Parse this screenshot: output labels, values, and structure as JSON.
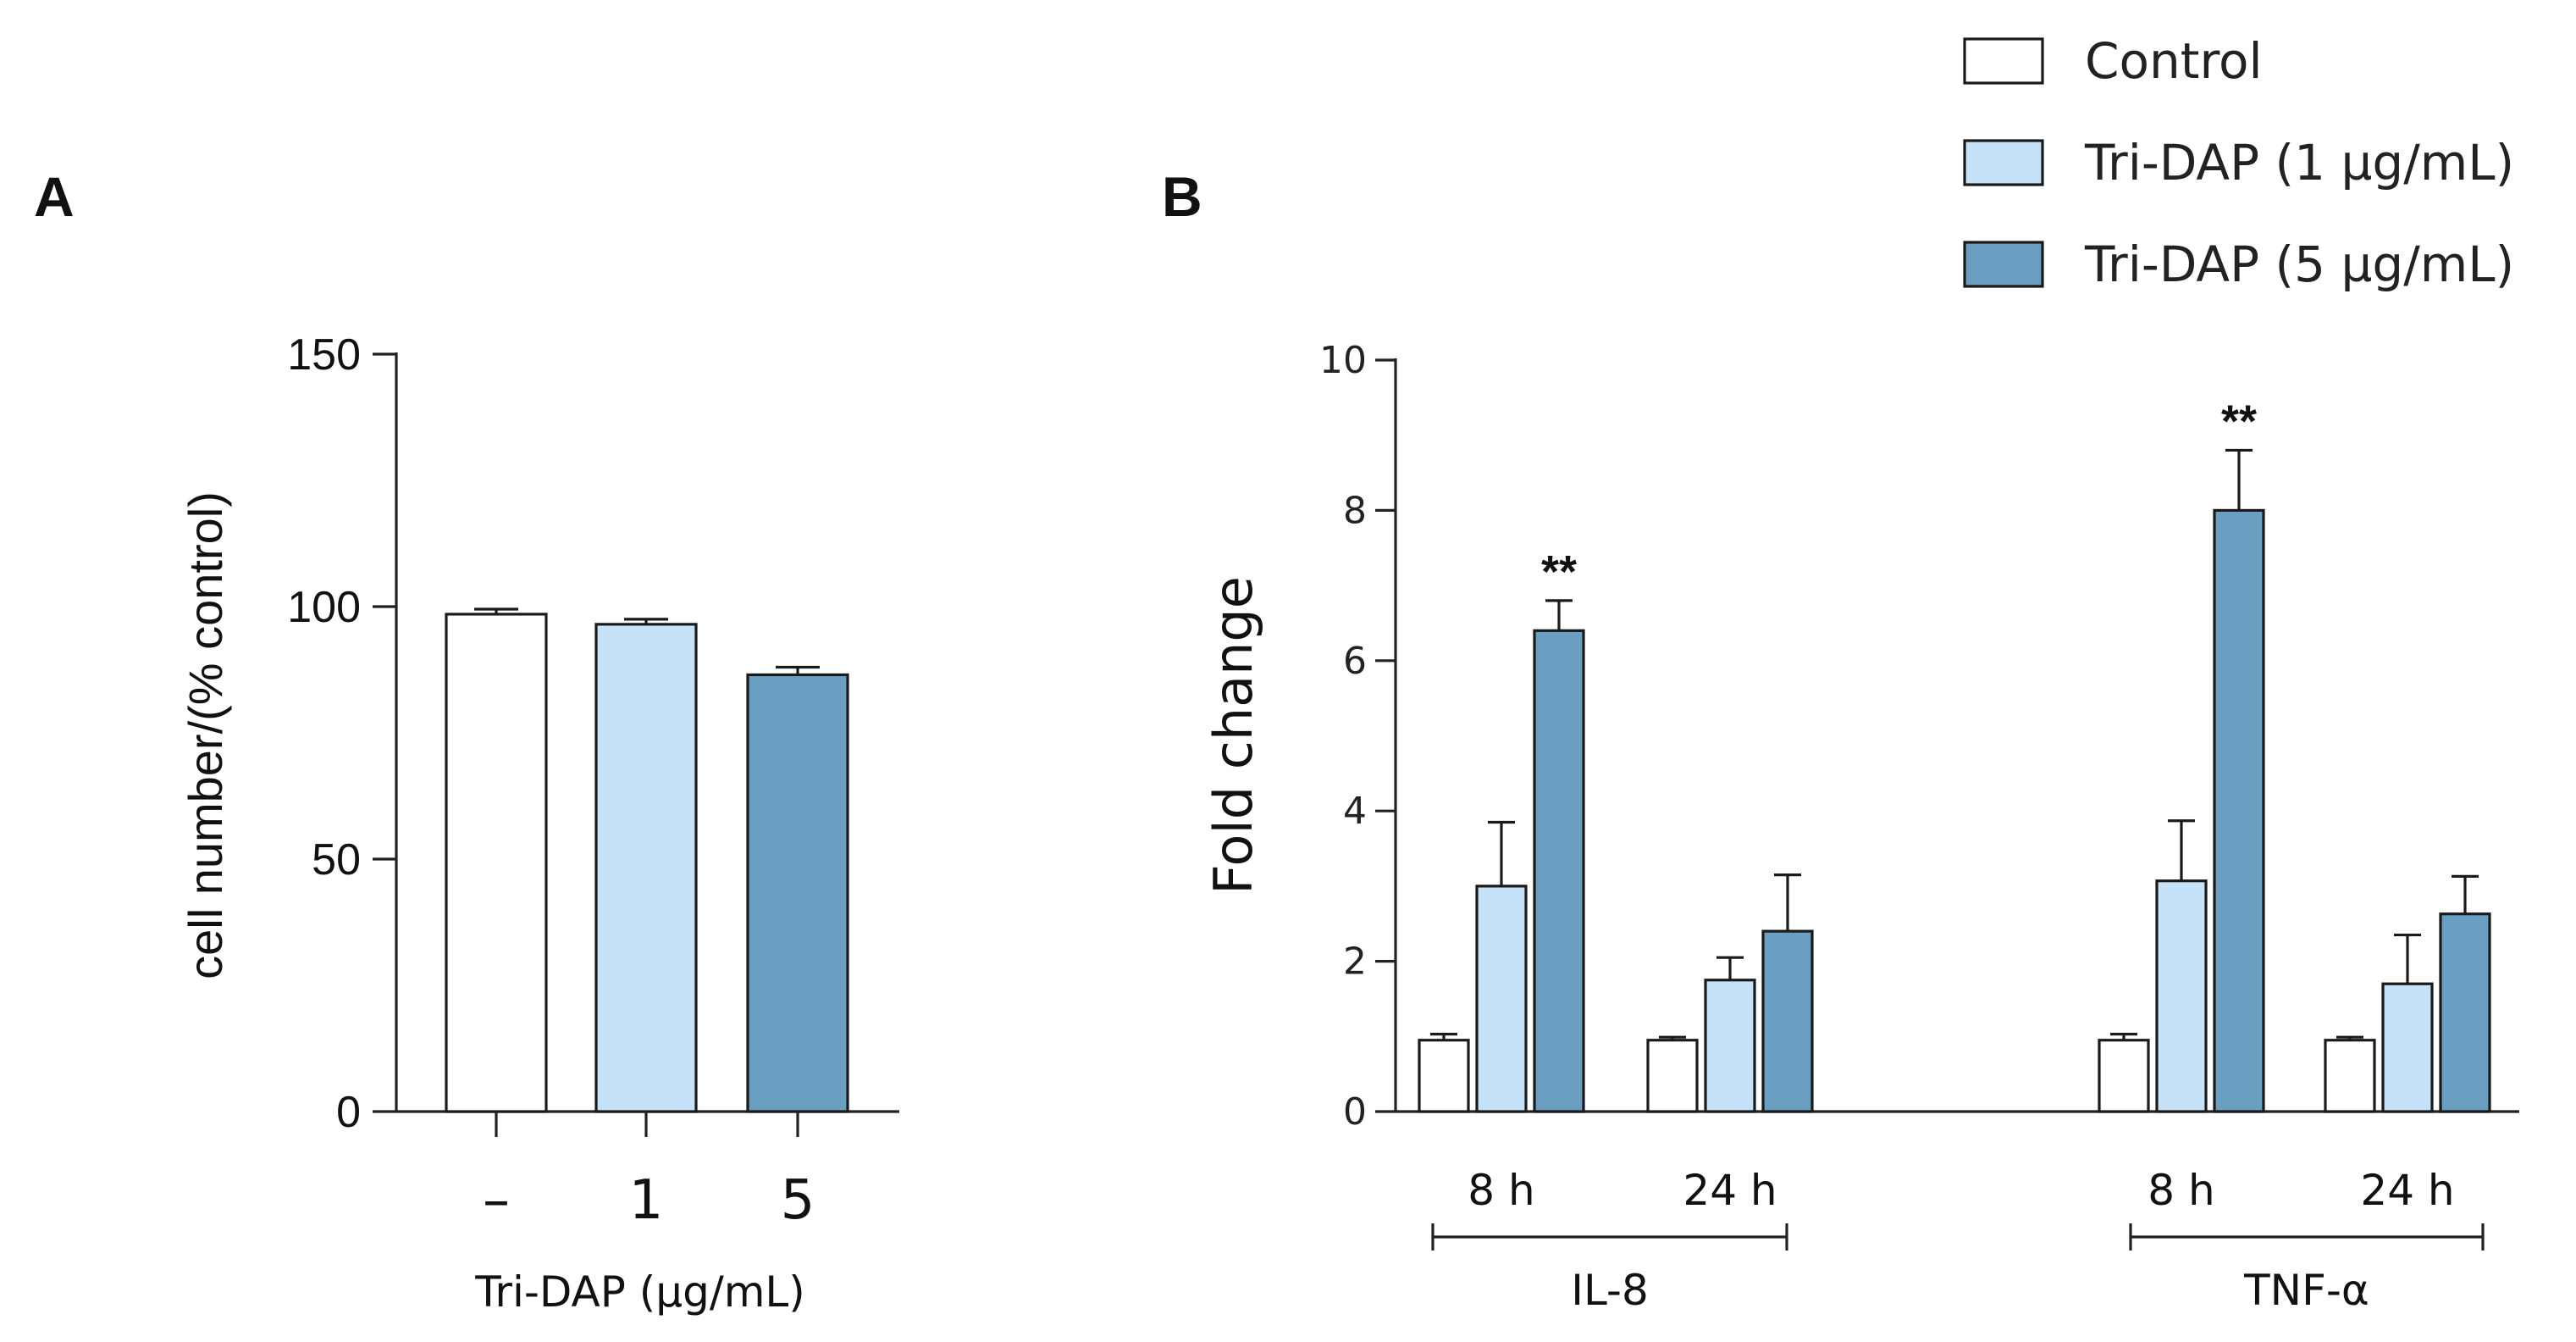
{
  "colors": {
    "control": "#ffffff",
    "tri_dap_1": "#c6e2f8",
    "tri_dap_5": "#6b9fc2",
    "edge": "#1a1a1a"
  },
  "legend": {
    "items": [
      {
        "label": "Control",
        "color_key": "control"
      },
      {
        "label": "Tri-DAP (1 µg/mL)",
        "color_key": "tri_dap_1"
      },
      {
        "label": "Tri-DAP (5 µg/mL)",
        "color_key": "tri_dap_5"
      }
    ]
  },
  "chart_data": [
    {
      "panel": "A",
      "type": "bar",
      "categories": [
        "–",
        "1",
        "5"
      ],
      "color_keys": [
        "control",
        "tri_dap_1",
        "tri_dap_5"
      ],
      "values": [
        98.5,
        96.5,
        86.5
      ],
      "errors": [
        1.0,
        1.0,
        1.5
      ],
      "xlabel": "Tri-DAP (µg/mL)",
      "ylabel": "cell number/(% control)",
      "ylim": [
        0,
        150
      ],
      "yticks": [
        0,
        50,
        100,
        150
      ],
      "grid": false
    },
    {
      "panel": "B",
      "type": "bar",
      "ylabel": "Fold change",
      "ylim": [
        0,
        10
      ],
      "yticks": [
        0,
        2,
        4,
        6,
        8,
        10
      ],
      "grid": false,
      "groups": [
        {
          "label": "IL-8",
          "subgroups": [
            {
              "label": "8 h",
              "values": [
                0.95,
                3.0,
                6.4
              ],
              "errors": [
                0.08,
                0.85,
                0.4
              ],
              "significance": [
                "",
                "",
                "**"
              ]
            },
            {
              "label": "24 h",
              "values": [
                0.95,
                1.75,
                2.4
              ],
              "errors": [
                0.04,
                0.3,
                0.75
              ],
              "significance": [
                "",
                "",
                ""
              ]
            }
          ]
        },
        {
          "label": "TNF-α",
          "subgroups": [
            {
              "label": "8 h",
              "values": [
                0.95,
                3.07,
                8.0
              ],
              "errors": [
                0.08,
                0.8,
                0.8
              ],
              "significance": [
                "",
                "",
                "**"
              ]
            },
            {
              "label": "24 h",
              "values": [
                0.95,
                1.7,
                2.63
              ],
              "errors": [
                0.04,
                0.65,
                0.5
              ],
              "significance": [
                "",
                "",
                ""
              ]
            }
          ]
        }
      ],
      "series": [
        {
          "name": "Control",
          "color_key": "control"
        },
        {
          "name": "Tri-DAP (1 µg/mL)",
          "color_key": "tri_dap_1"
        },
        {
          "name": "Tri-DAP (5 µg/mL)",
          "color_key": "tri_dap_5"
        }
      ]
    }
  ]
}
